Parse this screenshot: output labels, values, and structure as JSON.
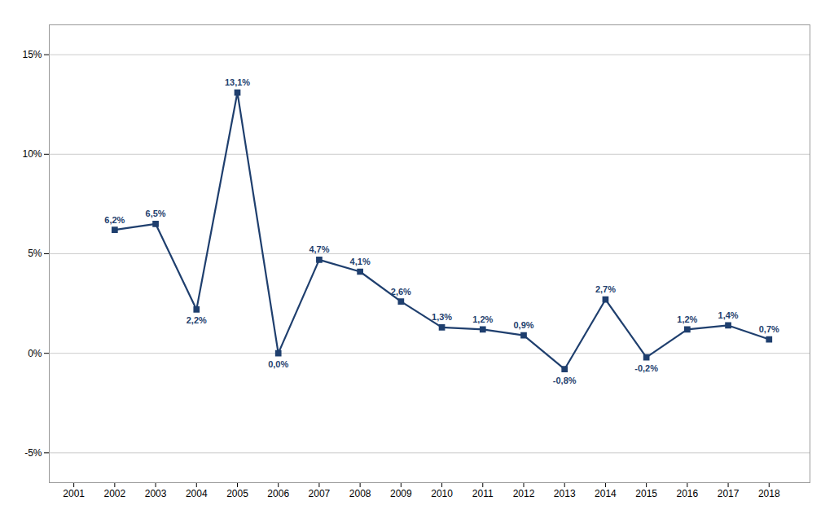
{
  "chart_data": {
    "type": "line",
    "x": [
      2001,
      2002,
      2003,
      2004,
      2005,
      2006,
      2007,
      2008,
      2009,
      2010,
      2011,
      2012,
      2013,
      2014,
      2015,
      2016,
      2017,
      2018
    ],
    "values": [
      null,
      6.2,
      6.5,
      2.2,
      13.1,
      0.0,
      4.7,
      4.1,
      2.6,
      1.3,
      1.2,
      0.9,
      -0.8,
      2.7,
      -0.2,
      1.2,
      1.4,
      0.7
    ],
    "value_labels": [
      null,
      "6,2%",
      "6,5%",
      "2,2%",
      "13,1%",
      "0,0%",
      "4,7%",
      "4,1%",
      "2,6%",
      "1,3%",
      "1,2%",
      "0,9%",
      "-0,8%",
      "2,7%",
      "-0,2%",
      "1,2%",
      "1,4%",
      "0,7%"
    ],
    "data_labels": true,
    "color": "#1F3F6E",
    "marker": "square",
    "xlim": [
      2000.4,
      2019.0
    ],
    "xticks": [
      2001,
      2002,
      2003,
      2004,
      2005,
      2006,
      2007,
      2008,
      2009,
      2010,
      2011,
      2012,
      2013,
      2014,
      2015,
      2016,
      2017,
      2018
    ],
    "ylim": [
      -6.5,
      16.5
    ],
    "yticks": [
      {
        "value": -5,
        "label": "-5%"
      },
      {
        "value": 0,
        "label": "0%"
      },
      {
        "value": 5,
        "label": "5%"
      },
      {
        "value": 10,
        "label": "10%"
      },
      {
        "value": 15,
        "label": "15%"
      }
    ],
    "grid": true
  }
}
